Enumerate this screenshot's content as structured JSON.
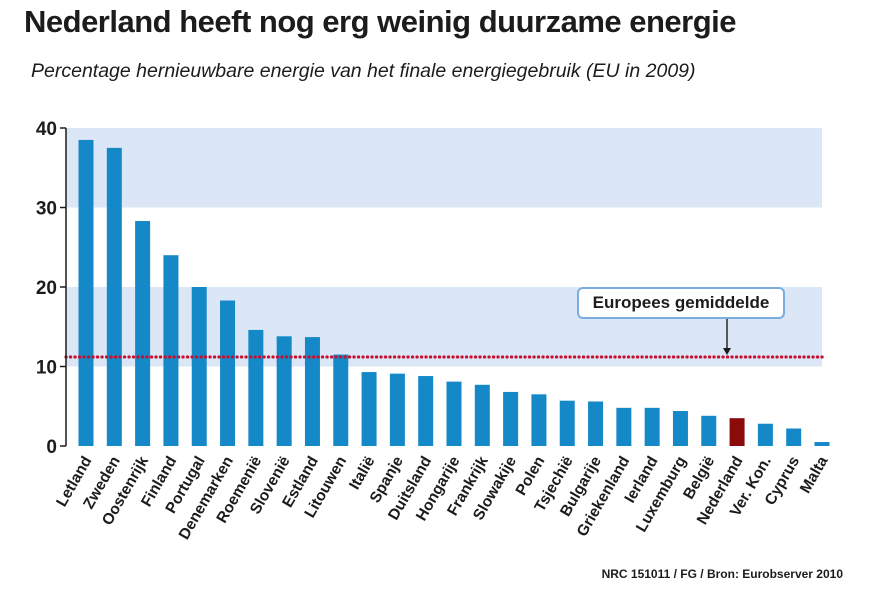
{
  "title": "Nederland heeft nog erg weinig duurzame energie",
  "subtitle": "Percentage hernieuwbare energie van het finale energiegebruik (EU in 2009)",
  "source": "NRC 151011 / FG / Bron: Eurobserver 2010",
  "colors": {
    "bar": "#1589c8",
    "highlight": "#8b0b0b",
    "band": "#dbe6f6",
    "average_line": "#c8102e",
    "axis": "#1c1c1c"
  },
  "chart_data": {
    "type": "bar",
    "title": "Nederland heeft nog erg weinig duurzame energie",
    "subtitle": "Percentage hernieuwbare energie van het finale energiegebruik (EU in 2009)",
    "xlabel": "",
    "ylabel": "",
    "ylim": [
      0,
      40
    ],
    "yticks": [
      0,
      10,
      20,
      30,
      40
    ],
    "grid": "alternating horizontal bands",
    "legend": "none",
    "categories": [
      "Letland",
      "Zweden",
      "Oostenrijk",
      "Finland",
      "Portugal",
      "Denemarken",
      "Roemenië",
      "Slovenië",
      "Estland",
      "Litouwen",
      "Italië",
      "Spanje",
      "Duitsland",
      "Hongarije",
      "Frankrijk",
      "Slowakije",
      "Polen",
      "Tsjechië",
      "Bulgarije",
      "Griekenland",
      "Ierland",
      "Luxemburg",
      "België",
      "Nederland",
      "Ver. Kon.",
      "Cyprus",
      "Malta"
    ],
    "values": [
      38.5,
      37.5,
      28.3,
      24.0,
      20.0,
      18.3,
      14.6,
      13.8,
      13.7,
      11.5,
      9.3,
      9.1,
      8.8,
      8.1,
      7.7,
      6.8,
      6.5,
      5.7,
      5.6,
      4.8,
      4.8,
      4.4,
      3.8,
      3.5,
      2.8,
      2.2,
      0.5
    ],
    "highlight": "Nederland",
    "reference_line": {
      "label": "Europees gemiddelde",
      "value": 11.2
    }
  }
}
